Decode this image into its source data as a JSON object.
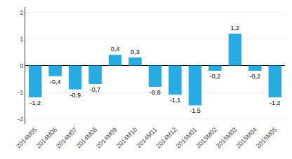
{
  "chart_data": {
    "type": "bar",
    "categories": [
      "2014M05",
      "2014M06",
      "2014M07",
      "2014M08",
      "2014M09",
      "2014M10",
      "2014M11",
      "2014M12",
      "2015M01",
      "2015M02",
      "2015M03",
      "2015M04",
      "2015M05"
    ],
    "values": [
      -1.2,
      -0.4,
      -0.9,
      -0.7,
      0.4,
      0.3,
      -0.8,
      -1.1,
      -1.5,
      -0.2,
      1.2,
      -0.2,
      -1.2
    ],
    "value_labels": [
      "-1,2",
      "-0,4",
      "-0,9",
      "-0,7",
      "0,4",
      "0,3",
      "-0,8",
      "-1,1",
      "-1,5",
      "-0,2",
      "1,2",
      "-0,2",
      "-1,2"
    ],
    "data_labels": true,
    "color": "#29abe2",
    "ylim": [
      -2.2,
      2.2
    ],
    "yticks": [
      -2,
      -1,
      0,
      1,
      2
    ],
    "grid": true
  }
}
